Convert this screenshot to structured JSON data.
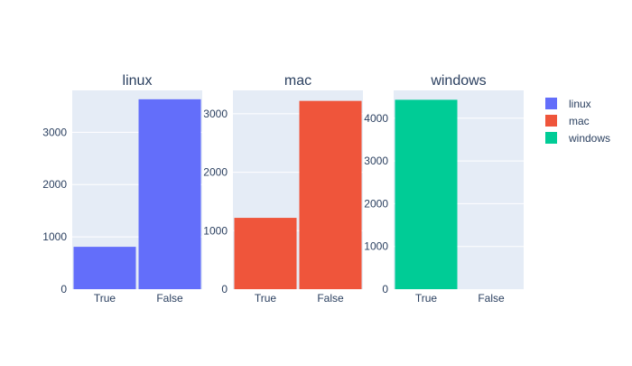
{
  "chart_data": [
    {
      "type": "bar",
      "title": "linux",
      "categories": [
        "True",
        "False"
      ],
      "series": [
        {
          "name": "linux",
          "values": [
            810,
            3630
          ]
        }
      ],
      "ylim": [
        0,
        3800
      ],
      "yticks": [
        0,
        1000,
        2000,
        3000
      ],
      "color": "#636efa",
      "grid": true
    },
    {
      "type": "bar",
      "title": "mac",
      "categories": [
        "True",
        "False"
      ],
      "series": [
        {
          "name": "mac",
          "values": [
            1220,
            3220
          ]
        }
      ],
      "ylim": [
        0,
        3400
      ],
      "yticks": [
        0,
        1000,
        2000,
        3000
      ],
      "color": "#ef553b",
      "grid": true
    },
    {
      "type": "bar",
      "title": "windows",
      "categories": [
        "True",
        "False"
      ],
      "series": [
        {
          "name": "windows",
          "values": [
            4430,
            0
          ]
        }
      ],
      "ylim": [
        0,
        4650
      ],
      "yticks": [
        0,
        1000,
        2000,
        3000,
        4000
      ],
      "color": "#00cc96",
      "grid": true
    }
  ],
  "legend": {
    "placement": "top-right",
    "items": [
      {
        "label": "linux",
        "color": "#636efa"
      },
      {
        "label": "mac",
        "color": "#ef553b"
      },
      {
        "label": "windows",
        "color": "#00cc96"
      }
    ]
  },
  "style": {
    "plot_bg": "#e5ecf6",
    "grid_color": "#ffffff",
    "text_color": "#2a3f5f"
  }
}
